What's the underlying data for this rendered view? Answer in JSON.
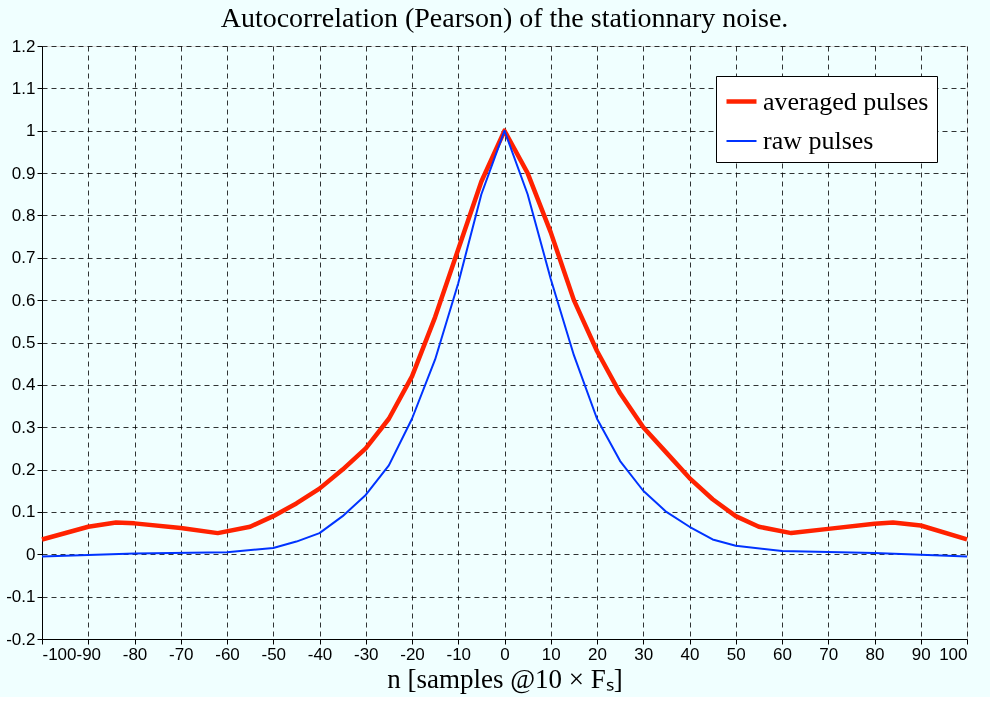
{
  "chart_data": {
    "type": "line",
    "title": "Autocorrelation (Pearson) of the stationnary noise.",
    "xlabel": "n [samples @10 × Fₛ]",
    "xlim": [
      -100,
      100
    ],
    "xticks": [
      -100,
      -90,
      -80,
      -70,
      -60,
      -50,
      -40,
      -30,
      -20,
      -10,
      0,
      10,
      20,
      30,
      40,
      50,
      60,
      70,
      80,
      90,
      100
    ],
    "ylim": [
      -0.2,
      1.2
    ],
    "yticks": [
      -0.2,
      -0.1,
      0,
      0.1,
      0.2,
      0.3,
      0.4,
      0.5,
      0.6,
      0.7,
      0.8,
      0.9,
      1,
      1.1,
      1.2
    ],
    "grid": true,
    "legend": "top right",
    "line_style": "solid",
    "marker": "none",
    "series": [
      {
        "name": "averaged pulses",
        "color": "#ff2200",
        "x": [
          -100,
          -90,
          -84,
          -80,
          -70,
          -62,
          -55,
          -50,
          -45,
          -40,
          -35,
          -30,
          -25,
          -20,
          -15,
          -10,
          -5,
          0,
          5,
          10,
          15,
          20,
          25,
          30,
          35,
          40,
          45,
          50,
          55,
          62,
          70,
          80,
          84,
          90,
          100
        ],
        "values": [
          0.035,
          0.065,
          0.075,
          0.073,
          0.062,
          0.05,
          0.065,
          0.09,
          0.12,
          0.155,
          0.2,
          0.25,
          0.32,
          0.42,
          0.56,
          0.72,
          0.88,
          1.0,
          0.9,
          0.76,
          0.6,
          0.48,
          0.38,
          0.3,
          0.24,
          0.18,
          0.13,
          0.09,
          0.065,
          0.05,
          0.06,
          0.072,
          0.075,
          0.068,
          0.035
        ]
      },
      {
        "name": "raw pulses",
        "color": "#0033ff",
        "x": [
          -100,
          -80,
          -60,
          -50,
          -45,
          -40,
          -35,
          -30,
          -25,
          -20,
          -15,
          -10,
          -5,
          0,
          5,
          10,
          15,
          20,
          25,
          30,
          35,
          40,
          45,
          50,
          60,
          80,
          100
        ],
        "values": [
          -0.005,
          0.002,
          0.005,
          0.015,
          0.03,
          0.05,
          0.09,
          0.14,
          0.21,
          0.32,
          0.46,
          0.64,
          0.85,
          1.0,
          0.85,
          0.65,
          0.47,
          0.32,
          0.22,
          0.15,
          0.1,
          0.065,
          0.035,
          0.02,
          0.008,
          0.003,
          -0.005
        ]
      }
    ]
  }
}
